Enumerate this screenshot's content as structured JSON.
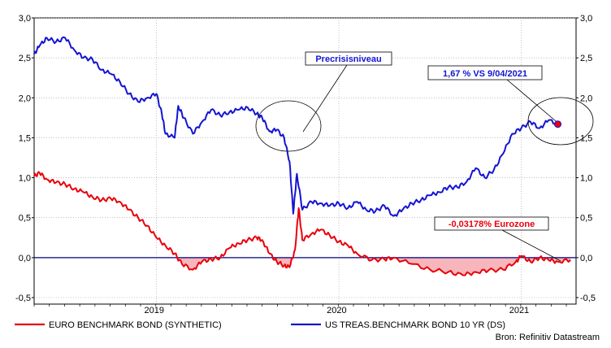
{
  "chart_data": {
    "type": "line",
    "title": "",
    "xlabel": "",
    "ylabel": "",
    "ylim": [
      -0.5,
      3.0
    ],
    "y_ticks": [
      "3,0",
      "2,5",
      "2,0",
      "1,5",
      "1,0",
      "0,5",
      "0,0",
      "-0,5"
    ],
    "x_ticks": [
      "2019",
      "2020",
      "2021"
    ],
    "grid": true,
    "legend_position": "bottom",
    "series": [
      {
        "name": "EURO BENCHMARK BOND (SYNTHETIC)",
        "color": "#e8000b",
        "fill_negative": "#f6b6bb",
        "points": [
          [
            2018.33,
            1.02
          ],
          [
            2018.36,
            1.06
          ],
          [
            2018.4,
            0.98
          ],
          [
            2018.45,
            0.94
          ],
          [
            2018.5,
            0.92
          ],
          [
            2018.55,
            0.86
          ],
          [
            2018.6,
            0.82
          ],
          [
            2018.65,
            0.76
          ],
          [
            2018.7,
            0.72
          ],
          [
            2018.75,
            0.74
          ],
          [
            2018.8,
            0.7
          ],
          [
            2018.85,
            0.6
          ],
          [
            2018.9,
            0.5
          ],
          [
            2018.95,
            0.4
          ],
          [
            2019.0,
            0.25
          ],
          [
            2019.05,
            0.15
          ],
          [
            2019.1,
            0.05
          ],
          [
            2019.14,
            -0.08
          ],
          [
            2019.2,
            -0.15
          ],
          [
            2019.25,
            -0.05
          ],
          [
            2019.3,
            -0.02
          ],
          [
            2019.35,
            0.0
          ],
          [
            2019.4,
            0.12
          ],
          [
            2019.45,
            0.18
          ],
          [
            2019.5,
            0.22
          ],
          [
            2019.55,
            0.25
          ],
          [
            2019.58,
            0.22
          ],
          [
            2019.62,
            0.05
          ],
          [
            2019.66,
            -0.05
          ],
          [
            2019.7,
            -0.1
          ],
          [
            2019.73,
            -0.12
          ],
          [
            2019.76,
            0.1
          ],
          [
            2019.78,
            0.62
          ],
          [
            2019.8,
            0.22
          ],
          [
            2019.85,
            0.3
          ],
          [
            2019.9,
            0.35
          ],
          [
            2019.95,
            0.28
          ],
          [
            2020.0,
            0.2
          ],
          [
            2020.05,
            0.15
          ],
          [
            2020.1,
            0.05
          ],
          [
            2020.18,
            -0.03
          ],
          [
            2020.25,
            -0.02
          ],
          [
            2020.3,
            0.0
          ],
          [
            2020.4,
            -0.08
          ],
          [
            2020.5,
            -0.15
          ],
          [
            2020.6,
            -0.18
          ],
          [
            2020.68,
            -0.22
          ],
          [
            2020.75,
            -0.18
          ],
          [
            2020.82,
            -0.16
          ],
          [
            2020.9,
            -0.15
          ],
          [
            2020.97,
            -0.05
          ],
          [
            2021.0,
            0.02
          ],
          [
            2021.05,
            -0.05
          ],
          [
            2021.1,
            0.0
          ],
          [
            2021.15,
            -0.03
          ],
          [
            2021.2,
            -0.05
          ],
          [
            2021.27,
            -0.03
          ]
        ]
      },
      {
        "name": "US TREAS.BENCHMARK BOND 10 YR (DS)",
        "color": "#1414d2",
        "points": [
          [
            2018.33,
            2.55
          ],
          [
            2018.36,
            2.65
          ],
          [
            2018.4,
            2.75
          ],
          [
            2018.45,
            2.7
          ],
          [
            2018.5,
            2.75
          ],
          [
            2018.55,
            2.6
          ],
          [
            2018.6,
            2.5
          ],
          [
            2018.65,
            2.48
          ],
          [
            2018.7,
            2.35
          ],
          [
            2018.75,
            2.3
          ],
          [
            2018.8,
            2.2
          ],
          [
            2018.85,
            2.05
          ],
          [
            2018.9,
            1.95
          ],
          [
            2018.95,
            2.0
          ],
          [
            2019.0,
            2.05
          ],
          [
            2019.03,
            1.8
          ],
          [
            2019.05,
            1.55
          ],
          [
            2019.1,
            1.5
          ],
          [
            2019.12,
            1.9
          ],
          [
            2019.15,
            1.75
          ],
          [
            2019.2,
            1.55
          ],
          [
            2019.25,
            1.7
          ],
          [
            2019.3,
            1.85
          ],
          [
            2019.35,
            1.78
          ],
          [
            2019.4,
            1.82
          ],
          [
            2019.45,
            1.85
          ],
          [
            2019.5,
            1.88
          ],
          [
            2019.55,
            1.8
          ],
          [
            2019.58,
            1.75
          ],
          [
            2019.62,
            1.58
          ],
          [
            2019.66,
            1.6
          ],
          [
            2019.7,
            1.5
          ],
          [
            2019.73,
            1.2
          ],
          [
            2019.75,
            0.55
          ],
          [
            2019.77,
            1.05
          ],
          [
            2019.8,
            0.6
          ],
          [
            2019.85,
            0.7
          ],
          [
            2019.9,
            0.68
          ],
          [
            2019.95,
            0.65
          ],
          [
            2020.0,
            0.68
          ],
          [
            2020.05,
            0.62
          ],
          [
            2020.1,
            0.7
          ],
          [
            2020.15,
            0.6
          ],
          [
            2020.2,
            0.58
          ],
          [
            2020.25,
            0.65
          ],
          [
            2020.3,
            0.52
          ],
          [
            2020.35,
            0.6
          ],
          [
            2020.4,
            0.68
          ],
          [
            2020.45,
            0.72
          ],
          [
            2020.5,
            0.78
          ],
          [
            2020.55,
            0.82
          ],
          [
            2020.6,
            0.88
          ],
          [
            2020.65,
            0.88
          ],
          [
            2020.7,
            0.95
          ],
          [
            2020.75,
            1.12
          ],
          [
            2020.8,
            1.0
          ],
          [
            2020.85,
            1.1
          ],
          [
            2020.9,
            1.3
          ],
          [
            2020.95,
            1.55
          ],
          [
            2021.0,
            1.62
          ],
          [
            2021.05,
            1.7
          ],
          [
            2021.1,
            1.62
          ],
          [
            2021.15,
            1.72
          ],
          [
            2021.2,
            1.67
          ]
        ]
      }
    ],
    "annotations": [
      {
        "text": "Precrisisniveau",
        "color": "#1414d2"
      },
      {
        "text": "1,67 %  VS  9/04/2021",
        "color": "#1414d2"
      },
      {
        "text": "-0,03178% Eurozone",
        "color": "#e8000b"
      }
    ]
  },
  "legend": {
    "euro": "EURO BENCHMARK BOND (SYNTHETIC)",
    "us": "US TREAS.BENCHMARK BOND 10 YR (DS)"
  },
  "source": "Bron: Refinitiv Datastream",
  "colors": {
    "axis": "#000000",
    "grid": "#9a9a9a",
    "zero_line": "#000080"
  }
}
